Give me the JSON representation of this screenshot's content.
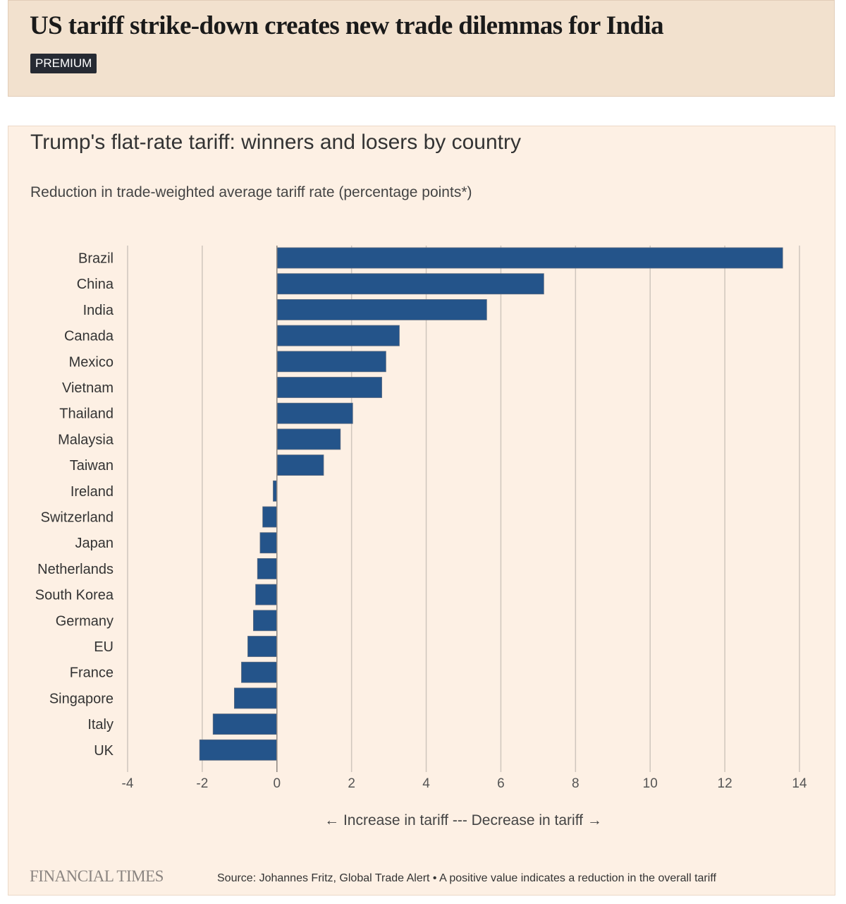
{
  "header": {
    "headline": "US tariff strike-down creates new trade dilemmas for India",
    "badge": "PREMIUM"
  },
  "chart_data": {
    "type": "bar",
    "orientation": "horizontal",
    "title": "Trump's flat-rate tariff: winners and losers by country",
    "subtitle": "Reduction in trade-weighted average tariff rate (percentage points*)",
    "xlabel": "← Increase in tariff --- Decrease in tariff →",
    "xlim": [
      -4,
      14
    ],
    "xticks": [
      "-4",
      "-2",
      "0",
      "2",
      "4",
      "6",
      "8",
      "10",
      "12",
      "14"
    ],
    "grid": "vertical",
    "bar_color": "#24548a",
    "categories": [
      "Brazil",
      "China",
      "India",
      "Canada",
      "Mexico",
      "Vietnam",
      "Thailand",
      "Malaysia",
      "Taiwan",
      "Ireland",
      "Switzerland",
      "Japan",
      "Netherlands",
      "South Korea",
      "Germany",
      "EU",
      "France",
      "Singapore",
      "Italy",
      "UK"
    ],
    "values": [
      13.55,
      7.15,
      5.62,
      3.28,
      2.92,
      2.81,
      2.03,
      1.7,
      1.25,
      -0.1,
      -0.38,
      -0.45,
      -0.52,
      -0.57,
      -0.63,
      -0.78,
      -0.95,
      -1.14,
      -1.71,
      -2.07
    ]
  },
  "footer": {
    "logo": "FINANCIAL TIMES",
    "source": "Source: Johannes Fritz, Global Trade Alert • A positive value indicates a reduction in the overall tariff"
  }
}
